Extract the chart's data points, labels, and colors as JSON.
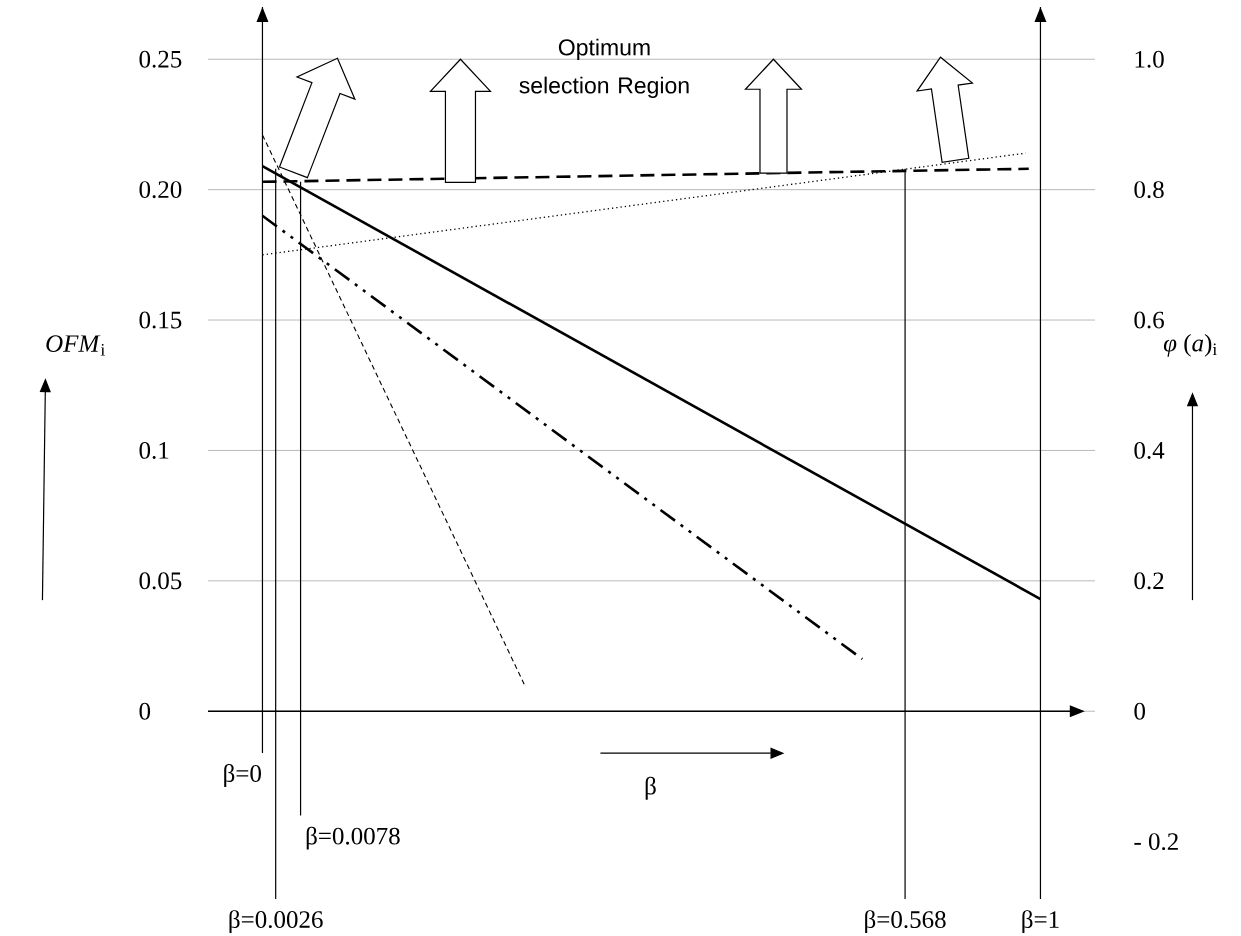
{
  "chart_data": {
    "type": "line",
    "xlabel": "β",
    "ylabel": "*OFM*$_{i}$",
    "y2label": "*φ* (*a*)$_{i}$",
    "xlim": [
      -0.07,
      1.07
    ],
    "ylim": [
      -0.072,
      0.27
    ],
    "y2lim": [
      -0.288,
      1.08
    ],
    "yticks": [
      0,
      0.05,
      0.1,
      0.15,
      {
        "value": 0.2,
        "label": "0.20"
      },
      0.25
    ],
    "y2ticks": [
      {
        "value": -0.2,
        "label": "- 0.2"
      },
      0,
      {
        "value": 0.2,
        "label": "0.2"
      },
      {
        "value": 0.4,
        "label": "0.4"
      },
      {
        "value": 0.6,
        "label": "0.6"
      },
      {
        "value": 0.8,
        "label": "0.8"
      },
      {
        "value": 1.0,
        "label": "1.0"
      }
    ],
    "grid": "y",
    "series": [
      {
        "color": "#000000",
        "line_style": "solid",
        "x": [
          0,
          1
        ],
        "values": [
          0.209,
          0.043
        ]
      },
      {
        "color": "#000000",
        "line_style": "dashed",
        "x": [
          0,
          0.985
        ],
        "values": [
          0.203,
          0.208
        ]
      },
      {
        "color": "#000000",
        "line_style": "dotted",
        "x": [
          0,
          0.981
        ],
        "values": [
          0.175,
          0.214
        ]
      },
      {
        "color": "#000000",
        "line_style": "dashdotdotted",
        "x": [
          0,
          0.771
        ],
        "values": [
          0.19,
          0.02
        ]
      },
      {
        "color": "#000000",
        "line_style": "densely dashed",
        "x": [
          0,
          0.337
        ],
        "values": [
          0.221,
          0.01
        ]
      }
    ],
    "ref_lines": [
      {
        "axis": "x",
        "value": 0,
        "label": "β=0"
      },
      {
        "axis": "x",
        "value": 1,
        "label": "β=1"
      }
    ],
    "annotations": [
      "Optimum selection Region",
      {
        "text": "β=0.0026",
        "x": 0.017,
        "y": 0.208
      },
      {
        "text": "β=0.0078",
        "x": 0.049,
        "y": 0.203
      },
      {
        "text": "β=0.568",
        "x": 0.826,
        "y": 0.208
      }
    ]
  }
}
